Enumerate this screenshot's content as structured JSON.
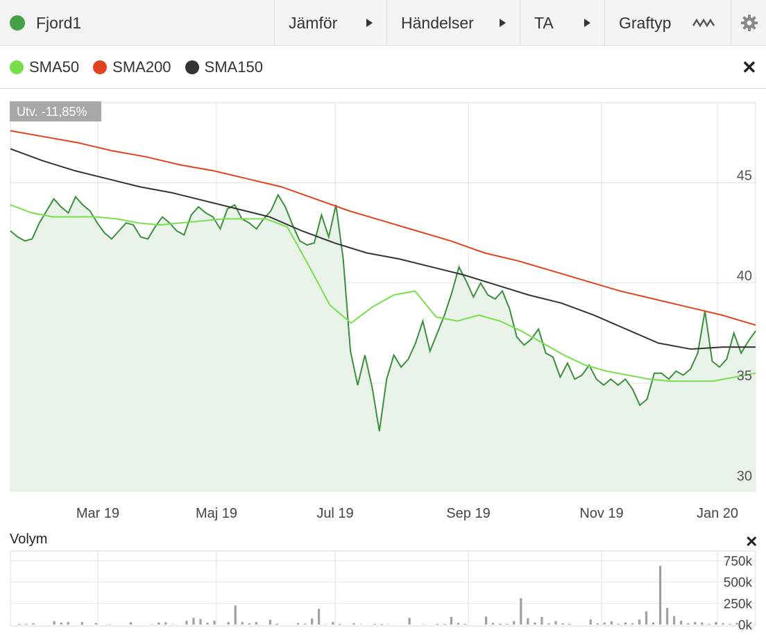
{
  "toolbar": {
    "title": "Fjord1",
    "title_color": "#43a047",
    "buttons": [
      {
        "label": "Jämför"
      },
      {
        "label": "Händelser"
      },
      {
        "label": "TA"
      },
      {
        "label": "Graftyp"
      }
    ]
  },
  "legend": [
    {
      "label": "SMA50",
      "color": "#76e04a"
    },
    {
      "label": "SMA200",
      "color": "#e0431e"
    },
    {
      "label": "SMA150",
      "color": "#333333"
    }
  ],
  "badge": "Utv. -11,85%",
  "volume_title": "Volym",
  "chart_data": [
    {
      "type": "line",
      "x_ticks": [
        "Mar 19",
        "Maj 19",
        "Jul 19",
        "Sep 19",
        "Nov 19",
        "Jan 20"
      ],
      "y_ticks": [
        "30",
        "35",
        "40",
        "45"
      ],
      "ylim": [
        29.6,
        49.0
      ],
      "grid": true,
      "colors": {
        "price": "#3a8f3a",
        "price_fill": "#eaf3ea"
      },
      "series": [
        {
          "name": "SMA50",
          "color": "#76e04a",
          "values": [
            43.9,
            43.5,
            43.3,
            43.3,
            43.3,
            43.2,
            43.0,
            42.9,
            43.0,
            43.1,
            43.2,
            43.2,
            43.2,
            42.8,
            40.9,
            38.9,
            38.0,
            38.8,
            39.4,
            39.6,
            38.3,
            38.1,
            38.4,
            38.1,
            37.6,
            37.0,
            36.4,
            35.9,
            35.6,
            35.4,
            35.2,
            35.1,
            35.1,
            35.1,
            35.3,
            35.5
          ]
        },
        {
          "name": "SMA200",
          "color": "#e0431e",
          "values": [
            47.6,
            47.3,
            47.0,
            46.6,
            46.3,
            45.9,
            45.6,
            45.2,
            44.8,
            44.2,
            43.6,
            43.1,
            42.6,
            42.1,
            41.5,
            41.1,
            40.6,
            40.1,
            39.6,
            39.2,
            38.8,
            38.4,
            37.9
          ]
        },
        {
          "name": "SMA150",
          "color": "#333333",
          "values": [
            46.7,
            46.1,
            45.6,
            45.2,
            44.8,
            44.5,
            44.1,
            43.7,
            43.3,
            42.6,
            42.0,
            41.5,
            41.2,
            40.8,
            40.4,
            39.9,
            39.4,
            39.0,
            38.4,
            37.7,
            37.0,
            36.7,
            36.8,
            36.8
          ]
        },
        {
          "name": "",
          "color": "#3a8f3a",
          "values": [
            42.6,
            42.3,
            42.1,
            42.2,
            43.0,
            43.6,
            44.2,
            43.8,
            43.5,
            44.3,
            43.9,
            43.6,
            43.0,
            42.5,
            42.2,
            42.6,
            43.0,
            42.9,
            42.3,
            42.2,
            42.8,
            43.3,
            43.0,
            42.6,
            42.4,
            43.4,
            43.8,
            43.5,
            43.3,
            42.7,
            43.7,
            43.9,
            43.2,
            43.0,
            42.7,
            43.2,
            43.6,
            44.4,
            43.8,
            42.9,
            42.1,
            41.9,
            42.0,
            43.4,
            42.3,
            43.9,
            41.2,
            36.6,
            34.9,
            36.4,
            34.8,
            32.6,
            35.2,
            36.4,
            35.8,
            36.2,
            37.0,
            38.1,
            36.6,
            37.5,
            38.4,
            39.5,
            40.8,
            40.1,
            39.3,
            40.0,
            39.4,
            39.2,
            39.6,
            38.7,
            37.3,
            36.9,
            37.2,
            37.7,
            36.5,
            36.3,
            35.3,
            36.0,
            35.2,
            35.4,
            35.9,
            35.2,
            34.9,
            35.2,
            34.9,
            35.2,
            34.7,
            33.9,
            34.2,
            35.5,
            35.5,
            35.2,
            35.6,
            35.4,
            35.7,
            36.5,
            38.6,
            36.1,
            35.8,
            36.2,
            37.5,
            36.5,
            37.1,
            37.6
          ]
        }
      ]
    },
    {
      "type": "bar",
      "title": "Volym",
      "y_ticks": [
        "0k",
        "250k",
        "500k",
        "750k"
      ],
      "ylim": [
        0,
        750000
      ],
      "color": "#a0a0a0",
      "values": [
        8000,
        10000,
        15000,
        0,
        0,
        40000,
        25000,
        30000,
        0,
        30000,
        0,
        18000,
        0,
        5000,
        0,
        0,
        28000,
        0,
        0,
        5000,
        25000,
        28000,
        5000,
        0,
        45000,
        80000,
        65000,
        22000,
        45000,
        0,
        30000,
        225000,
        30000,
        15000,
        30000,
        0,
        55000,
        10000,
        0,
        0,
        18000,
        10000,
        70000,
        185000,
        5000,
        30000,
        8000,
        0,
        15000,
        5000,
        0,
        8000,
        8000,
        5000,
        0,
        0,
        80000,
        0,
        5000,
        0,
        10000,
        8000,
        90000,
        20000,
        8000,
        0,
        0,
        95000,
        20000,
        10000,
        8000,
        40000,
        310000,
        75000,
        25000,
        90000,
        15000,
        40000,
        15000,
        8000,
        0,
        0,
        60000,
        15000,
        25000,
        40000,
        10000,
        25000,
        15000,
        60000,
        155000,
        25000,
        690000,
        195000,
        100000,
        45000,
        15000,
        30000,
        25000,
        10000,
        30000,
        15000,
        8000,
        20000
      ]
    }
  ]
}
